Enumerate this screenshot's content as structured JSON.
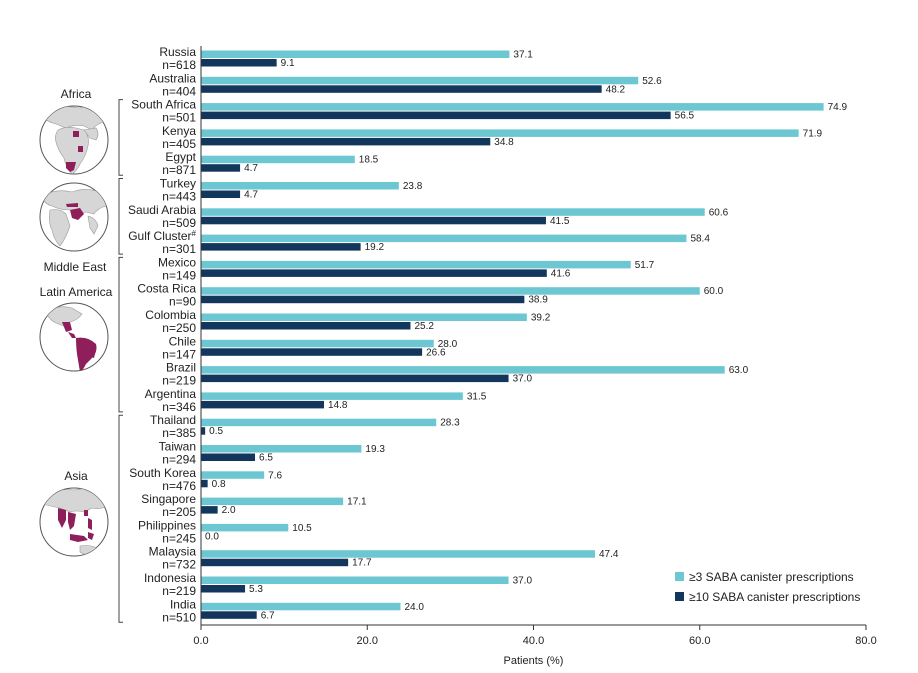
{
  "chart_data": {
    "type": "bar",
    "orientation": "horizontal",
    "xlabel": "Patients (%)",
    "xlim": [
      0,
      80
    ],
    "xticks": [
      "0.0",
      "20.0",
      "40.0",
      "60.0",
      "80.0"
    ],
    "colors": {
      "series1": "#6cc7d3",
      "series2": "#13365c"
    },
    "series": [
      {
        "name": "≥3 SABA canister prescriptions",
        "color": "#6cc7d3"
      },
      {
        "name": "≥10 SABA canister prescriptions",
        "color": "#13365c"
      }
    ],
    "categories": [
      {
        "name": "Russia",
        "sup": "",
        "n": "n=618",
        "v1": 37.1,
        "v2": 9.1,
        "l1": "37.1",
        "l2": "9.1"
      },
      {
        "name": "Australia",
        "sup": "",
        "n": "n=404",
        "v1": 52.6,
        "v2": 48.2,
        "l1": "52.6",
        "l2": "48.2"
      },
      {
        "name": "South Africa",
        "sup": "",
        "n": "n=501",
        "v1": 74.9,
        "v2": 56.5,
        "l1": "74.9",
        "l2": "56.5"
      },
      {
        "name": "Kenya",
        "sup": "",
        "n": "n=405",
        "v1": 71.9,
        "v2": 34.8,
        "l1": "71.9",
        "l2": "34.8"
      },
      {
        "name": "Egypt",
        "sup": "",
        "n": "n=871",
        "v1": 18.5,
        "v2": 4.7,
        "l1": "18.5",
        "l2": "4.7"
      },
      {
        "name": "Turkey",
        "sup": "",
        "n": "n=443",
        "v1": 23.8,
        "v2": 4.7,
        "l1": "23.8",
        "l2": "4.7"
      },
      {
        "name": "Saudi Arabia",
        "sup": "",
        "n": "n=509",
        "v1": 60.6,
        "v2": 41.5,
        "l1": "60.6",
        "l2": "41.5"
      },
      {
        "name": "Gulf Cluster",
        "sup": "#",
        "n": "n=301",
        "v1": 58.4,
        "v2": 19.2,
        "l1": "58.4",
        "l2": "19.2"
      },
      {
        "name": "Mexico",
        "sup": "",
        "n": "n=149",
        "v1": 51.7,
        "v2": 41.6,
        "l1": "51.7",
        "l2": "41.6"
      },
      {
        "name": "Costa Rica",
        "sup": "",
        "n": "n=90",
        "v1": 60.0,
        "v2": 38.9,
        "l1": "60.0",
        "l2": "38.9"
      },
      {
        "name": "Colombia",
        "sup": "",
        "n": "n=250",
        "v1": 39.2,
        "v2": 25.2,
        "l1": "39.2",
        "l2": "25.2"
      },
      {
        "name": "Chile",
        "sup": "",
        "n": "n=147",
        "v1": 28.0,
        "v2": 26.6,
        "l1": "28.0",
        "l2": "26.6"
      },
      {
        "name": "Brazil",
        "sup": "",
        "n": "n=219",
        "v1": 63.0,
        "v2": 37.0,
        "l1": "63.0",
        "l2": "37.0"
      },
      {
        "name": "Argentina",
        "sup": "",
        "n": "n=346",
        "v1": 31.5,
        "v2": 14.8,
        "l1": "31.5",
        "l2": "14.8"
      },
      {
        "name": "Thailand",
        "sup": "",
        "n": "n=385",
        "v1": 28.3,
        "v2": 0.5,
        "l1": "28.3",
        "l2": "0.5"
      },
      {
        "name": "Taiwan",
        "sup": "",
        "n": "n=294",
        "v1": 19.3,
        "v2": 6.5,
        "l1": "19.3",
        "l2": "6.5"
      },
      {
        "name": "South Korea",
        "sup": "",
        "n": "n=476",
        "v1": 7.6,
        "v2": 0.8,
        "l1": "7.6",
        "l2": "0.8"
      },
      {
        "name": "Singapore",
        "sup": "",
        "n": "n=205",
        "v1": 17.1,
        "v2": 2.0,
        "l1": "17.1",
        "l2": "2.0"
      },
      {
        "name": "Philippines",
        "sup": "",
        "n": "n=245",
        "v1": 10.5,
        "v2": 0.0,
        "l1": "10.5",
        "l2": "0.0"
      },
      {
        "name": "Malaysia",
        "sup": "",
        "n": "n=732",
        "v1": 47.4,
        "v2": 17.7,
        "l1": "47.4",
        "l2": "17.7"
      },
      {
        "name": "Indonesia",
        "sup": "",
        "n": "n=219",
        "v1": 37.0,
        "v2": 5.3,
        "l1": "37.0",
        "l2": "5.3"
      },
      {
        "name": "India",
        "sup": "",
        "n": "n=510",
        "v1": 24.0,
        "v2": 6.7,
        "l1": "24.0",
        "l2": "6.7"
      }
    ],
    "regions": [
      {
        "name": "Africa",
        "from": 2,
        "to": 4,
        "icon": "africa-globe-icon"
      },
      {
        "name": "Middle East",
        "from": 5,
        "to": 7,
        "icon": "middle-east-globe-icon"
      },
      {
        "name": "Latin America",
        "from": 8,
        "to": 13,
        "icon": "latin-america-globe-icon"
      },
      {
        "name": "Asia",
        "from": 14,
        "to": 21,
        "icon": "asia-globe-icon"
      }
    ]
  }
}
